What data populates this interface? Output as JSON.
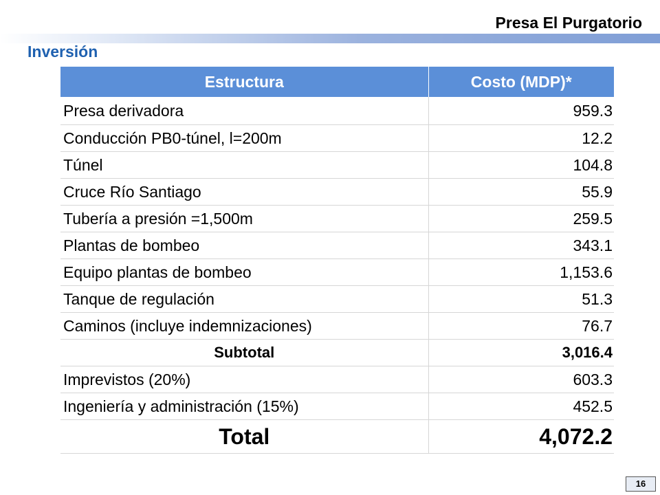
{
  "header": {
    "title": "Presa El Purgatorio",
    "colors": {
      "rule": "#7f9ed6"
    }
  },
  "section": {
    "title": "Inversión",
    "color": "#1f61b0"
  },
  "table": {
    "header_color": "#5b8fd8",
    "columns": [
      "Estructura",
      "Costo (MDP)*"
    ],
    "rows": [
      {
        "name": "Presa derivadora",
        "value": "959.3"
      },
      {
        "name": "Conducción PB0-túnel, l=200m",
        "value": "12.2"
      },
      {
        "name": "Túnel",
        "value": "104.8"
      },
      {
        "name": "Cruce Río Santiago",
        "value": "55.9"
      },
      {
        "name": "Tubería a presión =1,500m",
        "value": "259.5"
      },
      {
        "name": "Plantas de bombeo",
        "value": "343.1"
      },
      {
        "name": "Equipo plantas de bombeo",
        "value": "1,153.6"
      },
      {
        "name": "Tanque de regulación",
        "value": "51.3"
      },
      {
        "name": "Caminos (incluye indemnizaciones)",
        "value": "76.7"
      }
    ],
    "subtotal": {
      "name": "Subtotal",
      "value": "3,016.4"
    },
    "extras": [
      {
        "name": "Imprevistos (20%)",
        "value": "603.3"
      },
      {
        "name": "Ingeniería y administración (15%)",
        "value": "452.5"
      }
    ],
    "total": {
      "name": "Total",
      "value": "4,072.2"
    }
  },
  "footer": {
    "page_number": "16"
  }
}
